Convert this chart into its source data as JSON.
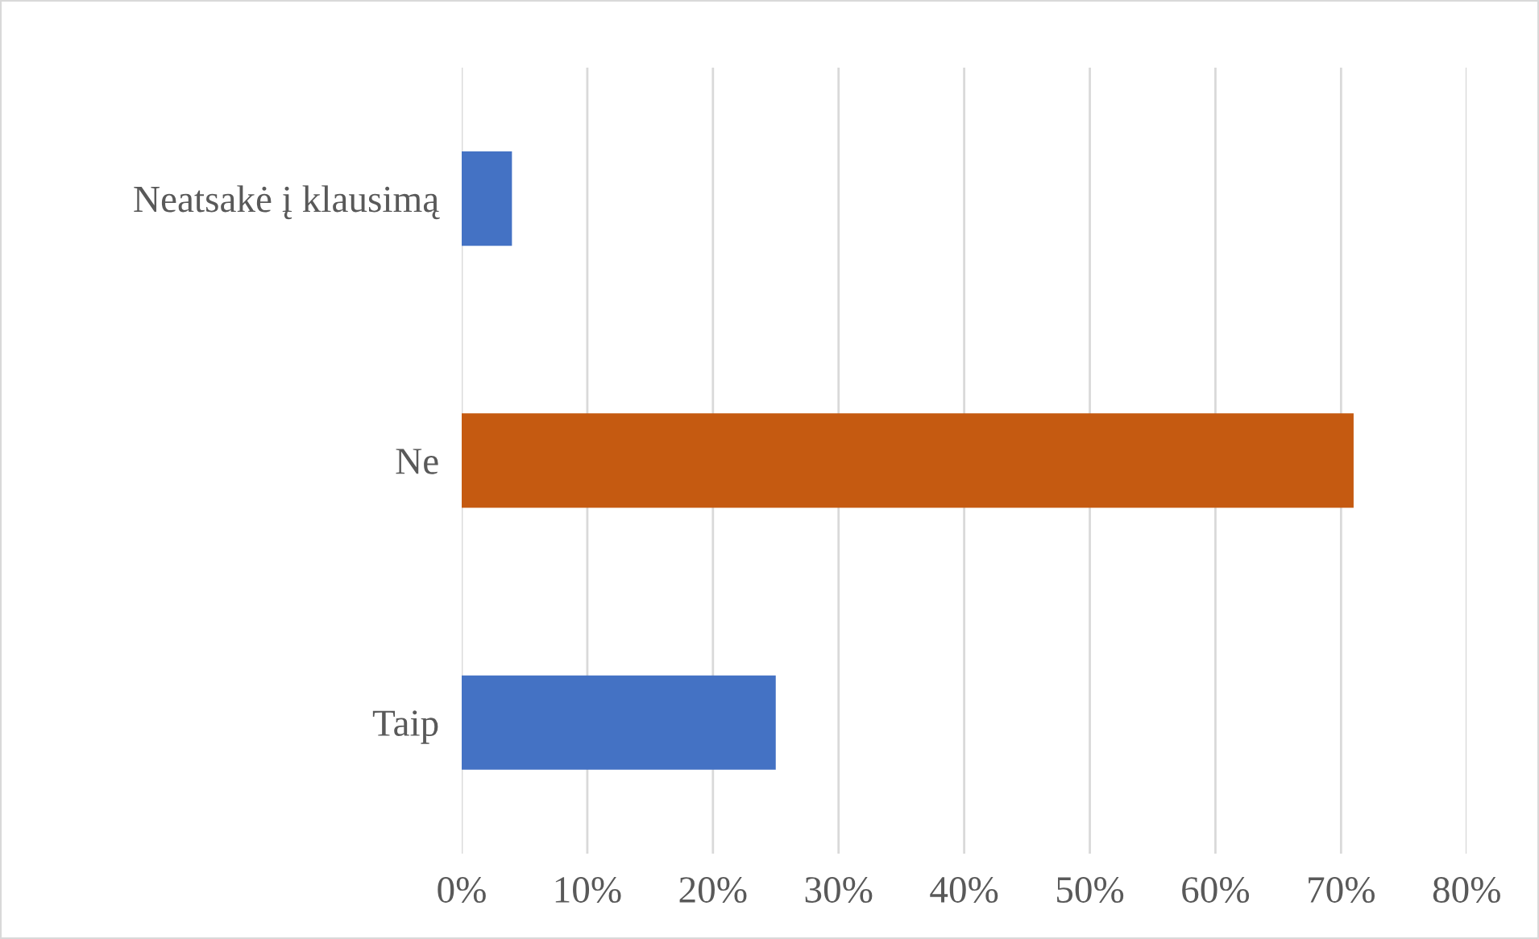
{
  "chart_data": {
    "type": "bar",
    "orientation": "horizontal",
    "categories": [
      "Neatsakė į klausimą",
      "Ne",
      "Taip"
    ],
    "values": [
      4,
      71,
      25
    ],
    "colors": [
      "#4472c4",
      "#c55a11",
      "#4472c4"
    ],
    "xlim": [
      0,
      80
    ],
    "xticks": [
      {
        "value": 0,
        "label": "0%"
      },
      {
        "value": 10,
        "label": "10%"
      },
      {
        "value": 20,
        "label": "20%"
      },
      {
        "value": 30,
        "label": "30%"
      },
      {
        "value": 40,
        "label": "40%"
      },
      {
        "value": 50,
        "label": "50%"
      },
      {
        "value": 60,
        "label": "60%"
      },
      {
        "value": 70,
        "label": "70%"
      },
      {
        "value": 80,
        "label": "80%"
      }
    ],
    "grid": "x"
  }
}
